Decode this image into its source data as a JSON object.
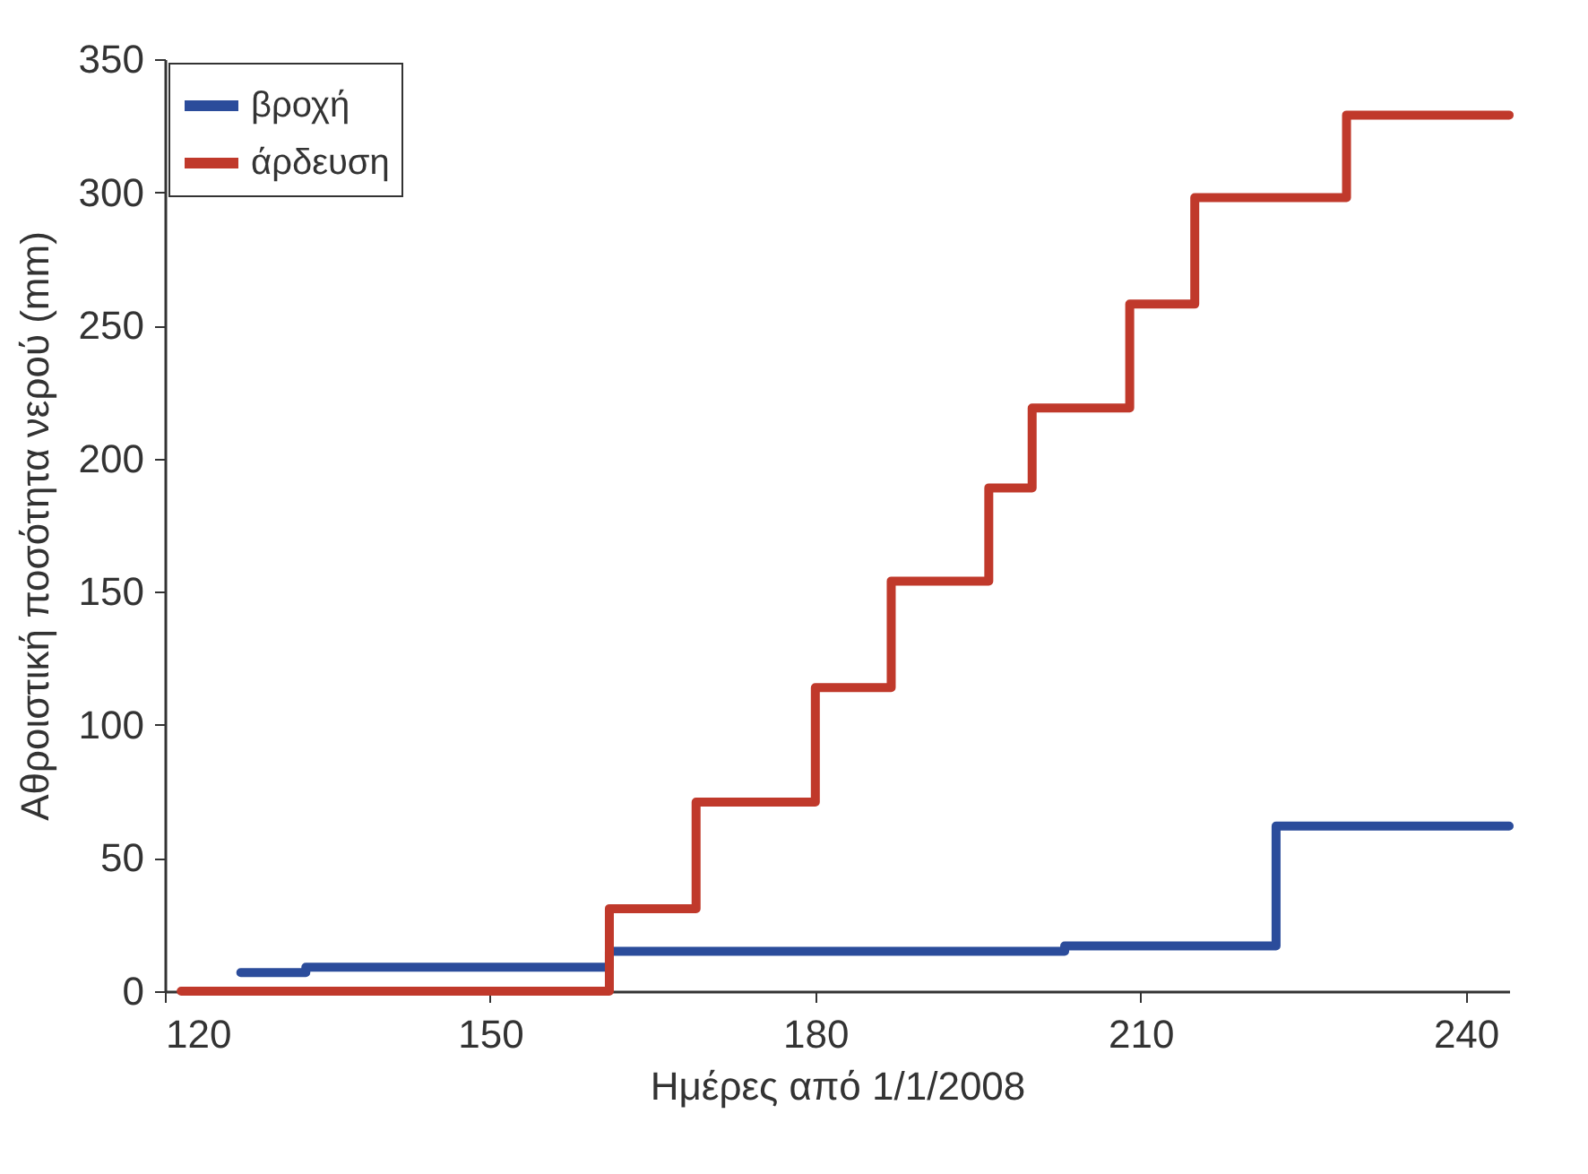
{
  "chart_data": {
    "type": "step",
    "xlabel": "Ημέρες από 1/1/2008",
    "ylabel": "Αθροιστική ποσότητα νερού (mm)",
    "xlim": [
      120,
      244
    ],
    "xticks": [
      120,
      150,
      180,
      210,
      240
    ],
    "ylim": [
      0,
      350
    ],
    "yticks": [
      0,
      50,
      100,
      150,
      200,
      250,
      300,
      350
    ],
    "grid": false,
    "legend": "top left",
    "line_style": "solid",
    "marker": "none",
    "series": [
      {
        "name": "βροχή",
        "color": "#2b4c9b",
        "x": [
          127,
          133,
          161,
          203,
          222.5,
          244
        ],
        "values": [
          7,
          9,
          15,
          17,
          62,
          62
        ]
      },
      {
        "name": "άρδευση",
        "color": "#c0392b",
        "x": [
          121.5,
          161,
          169,
          180,
          187,
          196,
          200,
          209,
          215,
          229,
          244
        ],
        "values": [
          0,
          31,
          71,
          114,
          154,
          189,
          219,
          258,
          298,
          329,
          329
        ]
      }
    ]
  }
}
